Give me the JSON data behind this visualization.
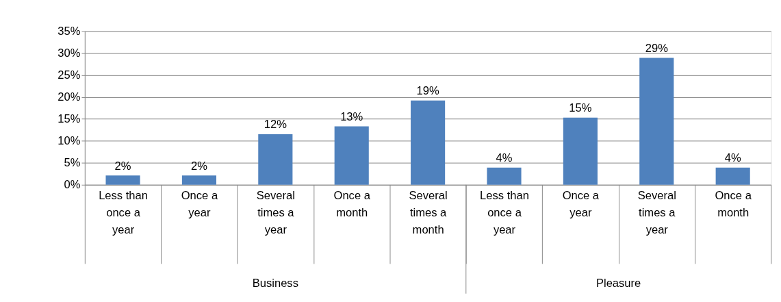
{
  "chart_data": {
    "type": "bar",
    "categories": [
      "Less than once a year",
      "Once a year",
      "Several times a year",
      "Once a month",
      "Several times a month",
      "Less than once a year",
      "Once a year",
      "Several times a year",
      "Once a month"
    ],
    "values": [
      2.1,
      2.1,
      11.5,
      13.3,
      19.2,
      3.9,
      15.3,
      28.9,
      3.9
    ],
    "value_labels": [
      "2%",
      "2%",
      "12%",
      "13%",
      "19%",
      "4%",
      "15%",
      "29%",
      "4%"
    ],
    "color": "#4f81bd",
    "ylim": [
      0,
      35
    ],
    "yticks": [
      {
        "value": 0,
        "label": "0%"
      },
      {
        "value": 5,
        "label": "5%"
      },
      {
        "value": 10,
        "label": "10%"
      },
      {
        "value": 15,
        "label": "15%"
      },
      {
        "value": 20,
        "label": "20%"
      },
      {
        "value": 25,
        "label": "25%"
      },
      {
        "value": 30,
        "label": "30%"
      },
      {
        "value": 35,
        "label": "35%"
      }
    ],
    "grid": "y",
    "annotations": [
      "Business",
      "Pleasure"
    ]
  }
}
